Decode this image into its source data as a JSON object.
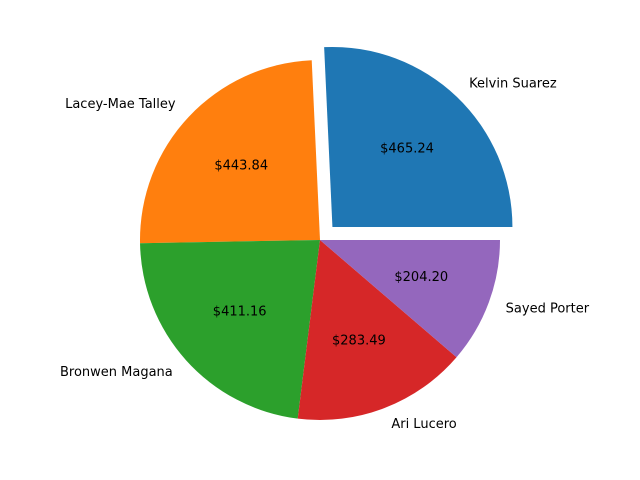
{
  "chart_data": {
    "type": "pie",
    "title": "",
    "start_angle_deg": 0,
    "direction": "counterclockwise",
    "exploded": [
      "Kelvin Suarez"
    ],
    "legend": "none",
    "slices": [
      {
        "label": "Kelvin Suarez",
        "value": 465.24,
        "value_label": "$465.24",
        "color": "#1f77b4"
      },
      {
        "label": "Lacey-Mae Talley",
        "value": 443.84,
        "value_label": "$443.84",
        "color": "#ff7f0e"
      },
      {
        "label": "Bronwen Magana",
        "value": 411.16,
        "value_label": "$411.16",
        "color": "#2ca02c"
      },
      {
        "label": "Ari Lucero",
        "value": 283.49,
        "value_label": "$283.49",
        "color": "#d62728"
      },
      {
        "label": "Sayed Porter",
        "value": 204.2,
        "value_label": "$204.20",
        "color": "#9467bd"
      }
    ]
  }
}
